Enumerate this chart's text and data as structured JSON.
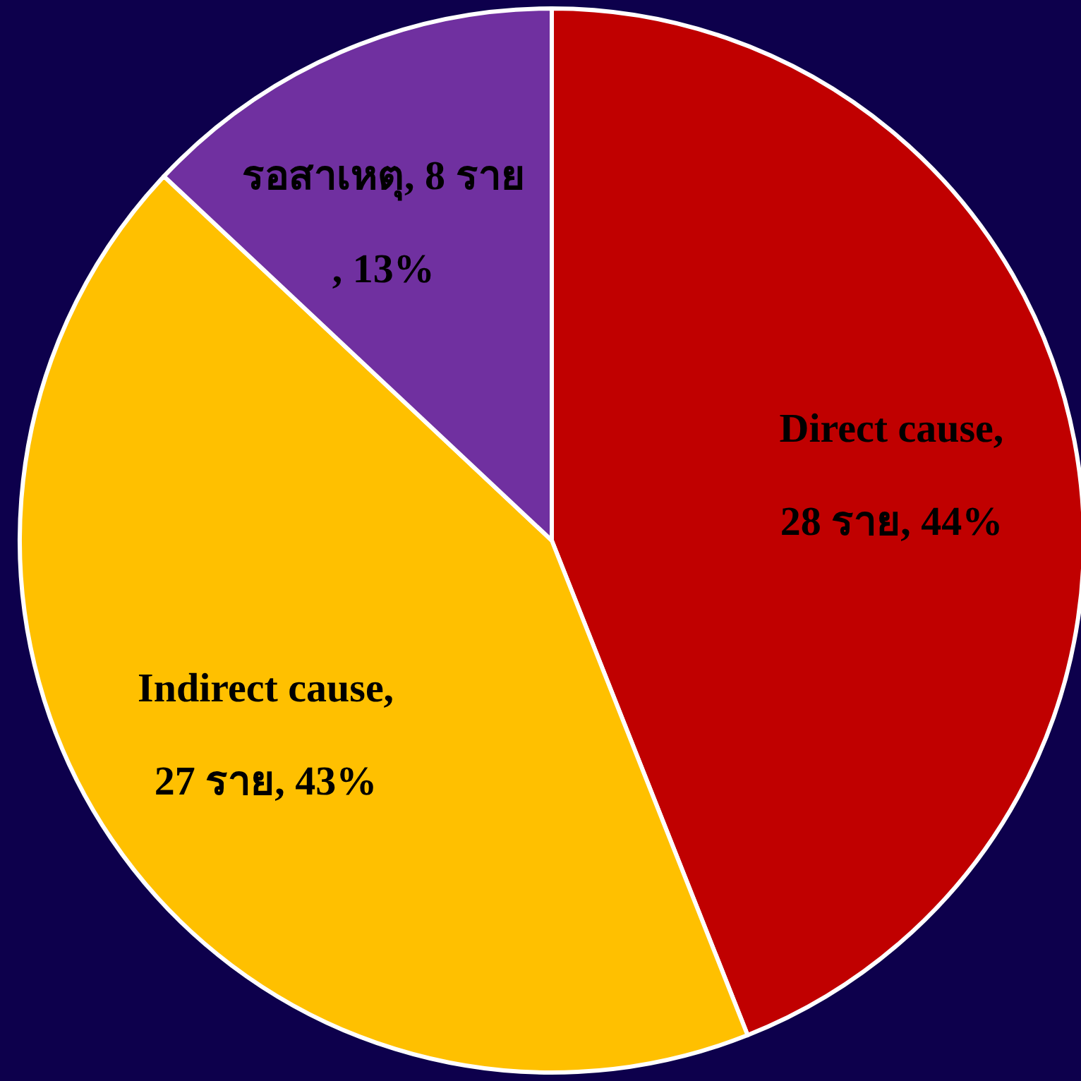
{
  "chart_data": {
    "type": "pie",
    "categories": [
      "Direct cause,\n28 ราย, 44%",
      "Indirect cause,\n27 ราย, 43%",
      "รอสาเหตุ, 8 ราย\n, 13%"
    ],
    "values": [
      44,
      43,
      13
    ],
    "colors": [
      "#c00000",
      "#ffc000",
      "#7030a0"
    ]
  }
}
